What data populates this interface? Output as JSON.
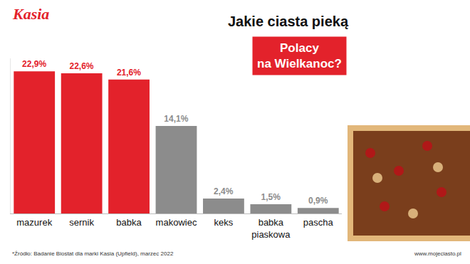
{
  "chart_data": {
    "type": "bar",
    "brand": "Kasia",
    "title": "Jakie ciasta pieką",
    "subtitle": "Polacy na Wielkanoc?",
    "categories": [
      "mazurek",
      "sernik",
      "babka",
      "makowiec",
      "keks",
      "babka piaskowa",
      "pascha"
    ],
    "values": [
      22.9,
      22.6,
      21.6,
      14.1,
      2.4,
      1.5,
      0.9
    ],
    "value_labels": [
      "22,9%",
      "22,6%",
      "21,6%",
      "14,1%",
      "2,4%",
      "1,5%",
      "0,9%"
    ],
    "colors": [
      "#e3222b",
      "#e3222b",
      "#e3222b",
      "#8c8c8c",
      "#8c8c8c",
      "#8c8c8c",
      "#8c8c8c"
    ],
    "ylim": [
      0,
      25
    ],
    "data_labels": true,
    "tick_labels": "x",
    "grid": false,
    "source": "*Źródło: Badanie Biostat dla marki Kasia (Upfield), marzec 2022",
    "website": "www.mojeciasto.pl"
  }
}
